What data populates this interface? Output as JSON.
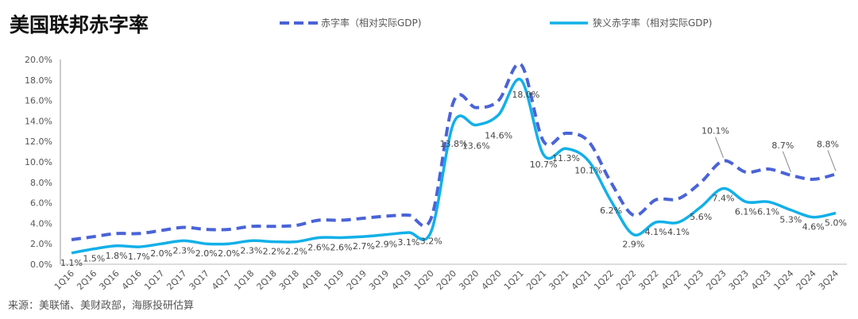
{
  "title": "美国联邦赤字率",
  "source": "来源：美联储、美财政部，海豚投研估算",
  "colors": {
    "deficit": "#4A63D8",
    "narrow": "#12B0E8"
  },
  "chart_data": {
    "type": "line",
    "title": "美国联邦赤字率",
    "xlabel": "",
    "ylabel": "",
    "ylim": [
      0,
      20
    ],
    "yticks": [
      "0.0%",
      "2.0%",
      "4.0%",
      "6.0%",
      "8.0%",
      "10.0%",
      "12.0%",
      "14.0%",
      "16.0%",
      "18.0%",
      "20.0%"
    ],
    "legend_position": "top",
    "categories": [
      "1Q16",
      "2Q16",
      "3Q16",
      "4Q16",
      "1Q17",
      "2Q17",
      "3Q17",
      "4Q17",
      "1Q18",
      "2Q18",
      "3Q18",
      "4Q18",
      "1Q19",
      "2Q19",
      "3Q19",
      "4Q19",
      "1Q20",
      "2Q20",
      "3Q20",
      "4Q20",
      "1Q21",
      "2Q21",
      "3Q21",
      "4Q21",
      "1Q22",
      "2Q22",
      "3Q22",
      "4Q22",
      "1Q23",
      "2Q23",
      "3Q23",
      "4Q23",
      "1Q24",
      "2Q24",
      "3Q24"
    ],
    "series": [
      {
        "name": "赤字率（相对实际GDP)",
        "style": "dashed",
        "values": [
          2.4,
          2.7,
          3.0,
          3.0,
          3.3,
          3.6,
          3.4,
          3.4,
          3.7,
          3.7,
          3.8,
          4.3,
          4.3,
          4.5,
          4.7,
          4.8,
          4.5,
          15.9,
          15.3,
          16.0,
          19.5,
          12.0,
          12.8,
          12.0,
          8.0,
          4.8,
          6.3,
          6.4,
          8.0,
          10.1,
          9.0,
          9.3,
          8.7,
          8.3,
          8.8
        ],
        "labels": {
          "29": "10.1%",
          "32": "8.7%",
          "34": "8.8%"
        }
      },
      {
        "name": "狭义赤字率（相对实际GDP)",
        "style": "solid",
        "values": [
          1.1,
          1.5,
          1.8,
          1.7,
          2.0,
          2.3,
          2.0,
          2.0,
          2.3,
          2.2,
          2.2,
          2.6,
          2.6,
          2.7,
          2.9,
          3.1,
          3.2,
          13.8,
          13.6,
          14.6,
          18.0,
          10.7,
          11.3,
          10.1,
          6.2,
          2.9,
          4.1,
          4.1,
          5.6,
          7.4,
          6.1,
          6.1,
          5.3,
          4.6,
          5.0
        ]
      }
    ]
  }
}
